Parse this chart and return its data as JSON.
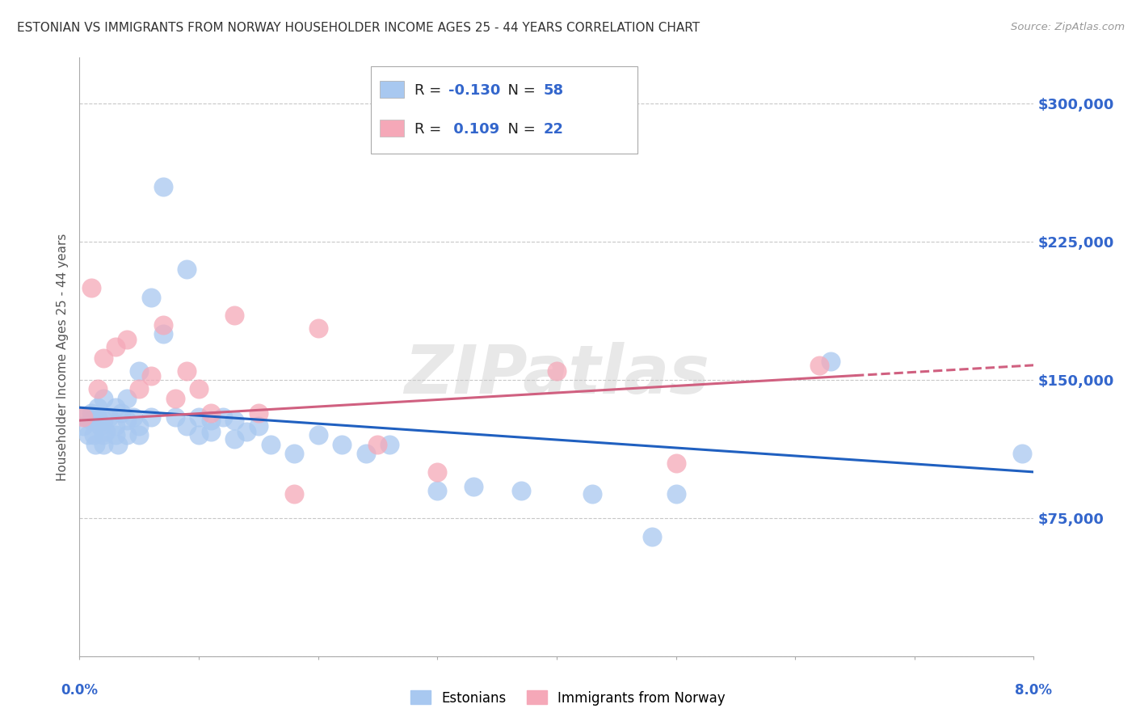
{
  "title": "ESTONIAN VS IMMIGRANTS FROM NORWAY HOUSEHOLDER INCOME AGES 25 - 44 YEARS CORRELATION CHART",
  "source": "Source: ZipAtlas.com",
  "ylabel": "Householder Income Ages 25 - 44 years",
  "y_ticks": [
    0,
    75000,
    150000,
    225000,
    300000
  ],
  "y_tick_labels": [
    "",
    "$75,000",
    "$150,000",
    "$225,000",
    "$300,000"
  ],
  "xlim": [
    0.0,
    0.08
  ],
  "ylim": [
    0,
    325000
  ],
  "blue_color": "#A8C8F0",
  "pink_color": "#F5A8B8",
  "blue_line_color": "#2060C0",
  "pink_line_color": "#D06080",
  "background_color": "#FFFFFF",
  "grid_color": "#C8C8C8",
  "watermark": "ZIPatlas",
  "title_color": "#333333",
  "tick_label_color": "#3366CC",
  "legend_r_color": "#222222",
  "legend_n_color": "#3366CC",
  "est_x": [
    0.0003,
    0.0005,
    0.0007,
    0.001,
    0.001,
    0.0012,
    0.0013,
    0.0015,
    0.0015,
    0.0017,
    0.002,
    0.002,
    0.002,
    0.002,
    0.0022,
    0.0025,
    0.003,
    0.003,
    0.003,
    0.0032,
    0.0035,
    0.004,
    0.004,
    0.004,
    0.0045,
    0.005,
    0.005,
    0.005,
    0.006,
    0.006,
    0.007,
    0.007,
    0.008,
    0.009,
    0.009,
    0.01,
    0.01,
    0.011,
    0.011,
    0.012,
    0.013,
    0.013,
    0.014,
    0.015,
    0.016,
    0.018,
    0.02,
    0.022,
    0.024,
    0.026,
    0.03,
    0.033,
    0.037,
    0.043,
    0.048,
    0.05,
    0.063,
    0.079
  ],
  "est_y": [
    125000,
    130000,
    120000,
    128000,
    132000,
    120000,
    115000,
    135000,
    130000,
    125000,
    120000,
    128000,
    115000,
    140000,
    122000,
    130000,
    125000,
    120000,
    135000,
    115000,
    132000,
    140000,
    128000,
    120000,
    130000,
    125000,
    120000,
    155000,
    195000,
    130000,
    175000,
    255000,
    130000,
    125000,
    210000,
    130000,
    120000,
    128000,
    122000,
    130000,
    128000,
    118000,
    122000,
    125000,
    115000,
    110000,
    120000,
    115000,
    110000,
    115000,
    90000,
    92000,
    90000,
    88000,
    65000,
    88000,
    160000,
    110000
  ],
  "nor_x": [
    0.0003,
    0.001,
    0.0015,
    0.002,
    0.003,
    0.004,
    0.005,
    0.006,
    0.007,
    0.008,
    0.009,
    0.01,
    0.011,
    0.013,
    0.015,
    0.018,
    0.02,
    0.025,
    0.03,
    0.04,
    0.05,
    0.062
  ],
  "nor_y": [
    130000,
    200000,
    145000,
    162000,
    168000,
    172000,
    145000,
    152000,
    180000,
    140000,
    155000,
    145000,
    132000,
    185000,
    132000,
    88000,
    178000,
    115000,
    100000,
    155000,
    105000,
    158000
  ]
}
